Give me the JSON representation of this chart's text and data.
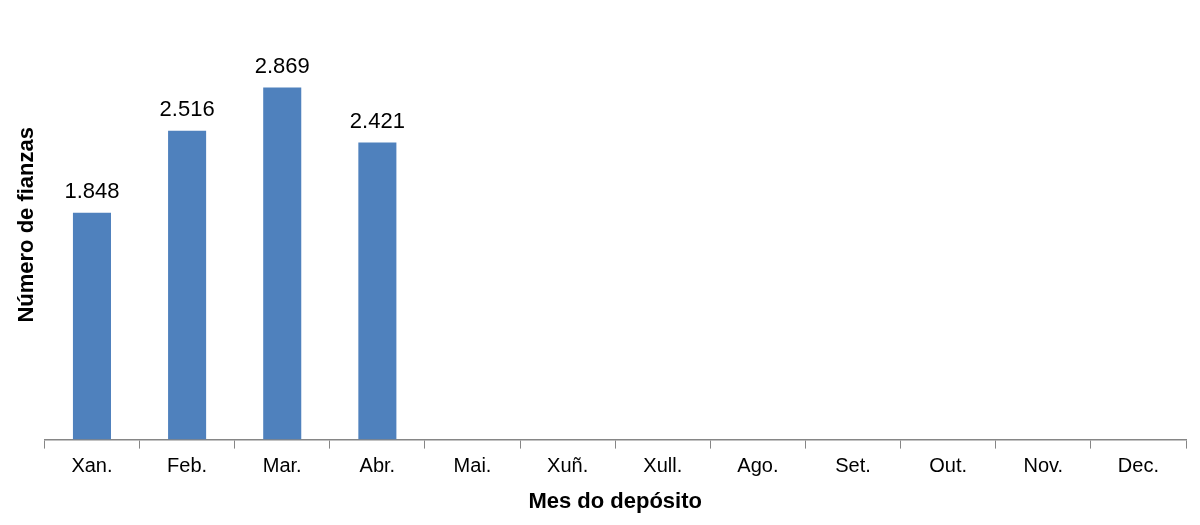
{
  "chart_data": {
    "type": "bar",
    "xlabel": "Mes do depósito",
    "ylabel": "Número de fianzas",
    "categories": [
      "Xan.",
      "Feb.",
      "Mar.",
      "Abr.",
      "Mai.",
      "Xuñ.",
      "Xull.",
      "Ago.",
      "Set.",
      "Out.",
      "Nov.",
      "Dec."
    ],
    "values": [
      1848,
      2516,
      2869,
      2421,
      null,
      null,
      null,
      null,
      null,
      null,
      null,
      null
    ],
    "value_labels": [
      "1.848",
      "2.516",
      "2.869",
      "2.421",
      null,
      null,
      null,
      null,
      null,
      null,
      null,
      null
    ],
    "color": "#4f81bd",
    "grid": false,
    "legend": false
  }
}
